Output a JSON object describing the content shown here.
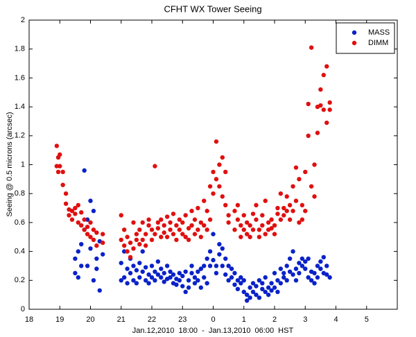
{
  "chart_data": {
    "type": "scatter",
    "title": "CFHT WX Tower Seeing",
    "x_label": "Jan.12,2010  18:00  -  Jan.13,2010  06:00  HST",
    "y_label": "Seeing @ 0.5 microns (arcsec)",
    "xlim": [
      18,
      30
    ],
    "xticks": [
      18,
      19,
      20,
      21,
      22,
      23,
      {
        "value": 24,
        "label": "0"
      },
      {
        "value": 25,
        "label": "1"
      },
      {
        "value": 26,
        "label": "2"
      },
      {
        "value": 27,
        "label": "3"
      },
      {
        "value": 28,
        "label": "4"
      },
      {
        "value": 29,
        "label": "5"
      }
    ],
    "ylim": [
      0,
      2
    ],
    "yticks": [
      0,
      0.2,
      0.4,
      0.6,
      0.8,
      1,
      1.2,
      1.4,
      1.6,
      1.8,
      2
    ],
    "grid": false,
    "legend": "top-right",
    "series": [
      {
        "name": "MASS",
        "color": "#0a22c8",
        "x": [
          19.5,
          19.5,
          19.6,
          19.6,
          19.7,
          19.7,
          19.8,
          19.8,
          19.9,
          19.9,
          20.0,
          20.0,
          20.1,
          20.1,
          20.2,
          20.2,
          20.3,
          20.3,
          20.4,
          21.0,
          21.0,
          21.1,
          21.1,
          21.2,
          21.2,
          21.3,
          21.3,
          21.4,
          21.4,
          21.5,
          21.5,
          21.6,
          21.6,
          21.7,
          21.7,
          21.8,
          21.8,
          21.9,
          21.9,
          22.0,
          22.0,
          22.1,
          22.1,
          22.2,
          22.2,
          22.3,
          22.3,
          22.4,
          22.4,
          22.5,
          22.5,
          22.6,
          22.6,
          22.7,
          22.7,
          22.8,
          22.8,
          22.9,
          22.9,
          23.0,
          23.0,
          23.1,
          23.1,
          23.2,
          23.2,
          23.3,
          23.3,
          23.4,
          23.4,
          23.5,
          23.5,
          23.6,
          23.6,
          23.7,
          23.7,
          23.8,
          23.8,
          23.9,
          23.9,
          24.0,
          24.0,
          24.1,
          24.1,
          24.2,
          24.2,
          24.3,
          24.3,
          24.4,
          24.4,
          24.5,
          24.5,
          24.6,
          24.6,
          24.7,
          24.7,
          24.8,
          24.8,
          24.9,
          24.9,
          25.0,
          25.0,
          25.1,
          25.1,
          25.2,
          25.2,
          25.3,
          25.3,
          25.4,
          25.4,
          25.5,
          25.5,
          25.6,
          25.6,
          25.7,
          25.7,
          25.8,
          25.8,
          25.9,
          25.9,
          26.0,
          26.0,
          26.1,
          26.1,
          26.2,
          26.2,
          26.3,
          26.3,
          26.4,
          26.4,
          26.5,
          26.5,
          26.6,
          26.6,
          26.7,
          26.7,
          26.8,
          26.8,
          26.9,
          26.9,
          27.0,
          27.0,
          27.1,
          27.1,
          27.2,
          27.2,
          27.3,
          27.3,
          27.4,
          27.4,
          27.5,
          27.5,
          27.6,
          27.6,
          27.7,
          27.7,
          27.8
        ],
        "values": [
          0.35,
          0.25,
          0.4,
          0.22,
          0.3,
          0.45,
          0.96,
          0.55,
          0.62,
          0.3,
          0.75,
          0.42,
          0.68,
          0.2,
          0.35,
          0.28,
          0.13,
          0.47,
          0.38,
          0.2,
          0.32,
          0.22,
          0.4,
          0.18,
          0.28,
          0.25,
          0.35,
          0.2,
          0.3,
          0.27,
          0.18,
          0.32,
          0.22,
          0.26,
          0.4,
          0.2,
          0.29,
          0.24,
          0.18,
          0.3,
          0.22,
          0.26,
          0.2,
          0.33,
          0.24,
          0.22,
          0.28,
          0.25,
          0.19,
          0.3,
          0.21,
          0.22,
          0.26,
          0.18,
          0.24,
          0.21,
          0.17,
          0.25,
          0.2,
          0.16,
          0.23,
          0.12,
          0.26,
          0.2,
          0.15,
          0.25,
          0.3,
          0.18,
          0.22,
          0.26,
          0.2,
          0.15,
          0.28,
          0.22,
          0.3,
          0.35,
          0.18,
          0.4,
          0.3,
          0.52,
          0.34,
          0.3,
          0.25,
          0.45,
          0.38,
          0.42,
          0.3,
          0.35,
          0.24,
          0.3,
          0.2,
          0.22,
          0.28,
          0.17,
          0.25,
          0.2,
          0.14,
          0.22,
          0.18,
          0.12,
          0.2,
          0.06,
          0.1,
          0.15,
          0.08,
          0.12,
          0.18,
          0.16,
          0.1,
          0.2,
          0.08,
          0.14,
          0.18,
          0.12,
          0.22,
          0.15,
          0.1,
          0.18,
          0.13,
          0.25,
          0.15,
          0.2,
          0.12,
          0.28,
          0.18,
          0.22,
          0.25,
          0.3,
          0.2,
          0.35,
          0.26,
          0.24,
          0.4,
          0.2,
          0.28,
          0.32,
          0.25,
          0.35,
          0.3,
          0.33,
          0.28,
          0.22,
          0.35,
          0.2,
          0.26,
          0.25,
          0.18,
          0.3,
          0.22,
          0.33,
          0.28,
          0.36,
          0.25,
          0.3,
          0.24,
          0.22
        ]
      },
      {
        "name": "DIMM",
        "color": "#e01010",
        "x": [
          18.9,
          18.9,
          18.95,
          18.95,
          19.0,
          19.0,
          19.1,
          19.1,
          19.2,
          19.2,
          19.3,
          19.3,
          19.4,
          19.4,
          19.5,
          19.5,
          19.6,
          19.6,
          19.7,
          19.7,
          19.8,
          19.8,
          19.9,
          19.9,
          20.0,
          20.0,
          20.1,
          20.1,
          20.2,
          20.2,
          20.4,
          20.4,
          21.0,
          21.0,
          21.1,
          21.1,
          21.2,
          21.2,
          21.3,
          21.3,
          21.4,
          21.4,
          21.5,
          21.5,
          21.6,
          21.6,
          21.7,
          21.7,
          21.8,
          21.8,
          21.9,
          21.9,
          22.0,
          22.0,
          22.1,
          22.1,
          22.2,
          22.2,
          22.3,
          22.3,
          22.4,
          22.4,
          22.5,
          22.5,
          22.6,
          22.6,
          22.7,
          22.7,
          22.8,
          22.8,
          22.9,
          22.9,
          23.0,
          23.0,
          23.1,
          23.1,
          23.2,
          23.2,
          23.3,
          23.3,
          23.4,
          23.4,
          23.5,
          23.5,
          23.6,
          23.6,
          23.7,
          23.7,
          23.8,
          23.8,
          23.9,
          23.9,
          24.0,
          24.0,
          24.1,
          24.1,
          24.2,
          24.2,
          24.3,
          24.3,
          24.4,
          24.4,
          24.5,
          24.5,
          24.7,
          24.7,
          24.8,
          24.8,
          24.9,
          24.9,
          25.0,
          25.0,
          25.1,
          25.1,
          25.2,
          25.2,
          25.3,
          25.3,
          25.4,
          25.4,
          25.5,
          25.5,
          25.6,
          25.6,
          25.7,
          25.7,
          25.8,
          25.8,
          25.9,
          25.9,
          26.0,
          26.0,
          26.1,
          26.1,
          26.2,
          26.2,
          26.3,
          26.3,
          26.4,
          26.4,
          26.5,
          26.5,
          26.6,
          26.6,
          26.7,
          26.7,
          26.8,
          26.8,
          26.9,
          26.9,
          27.0,
          27.0,
          27.1,
          27.1,
          27.2,
          27.2,
          27.3,
          27.3,
          27.4,
          27.4,
          27.5,
          27.5,
          27.6,
          27.6,
          27.7,
          27.7,
          27.8,
          27.8
        ],
        "values": [
          1.13,
          0.99,
          1.05,
          0.95,
          1.07,
          0.99,
          0.95,
          0.86,
          0.8,
          0.73,
          0.65,
          0.69,
          0.68,
          0.62,
          0.7,
          0.66,
          0.6,
          0.72,
          0.58,
          0.67,
          0.55,
          0.62,
          0.52,
          0.57,
          0.6,
          0.5,
          0.55,
          0.48,
          0.53,
          0.44,
          0.52,
          0.46,
          0.65,
          0.48,
          0.44,
          0.55,
          0.4,
          0.5,
          0.46,
          0.36,
          0.6,
          0.42,
          0.52,
          0.48,
          0.45,
          0.55,
          0.6,
          0.48,
          0.52,
          0.44,
          0.58,
          0.62,
          0.48,
          0.55,
          0.99,
          0.52,
          0.56,
          0.6,
          0.5,
          0.62,
          0.58,
          0.53,
          0.64,
          0.5,
          0.55,
          0.6,
          0.52,
          0.66,
          0.48,
          0.58,
          0.55,
          0.62,
          0.52,
          0.6,
          0.5,
          0.65,
          0.56,
          0.48,
          0.58,
          0.68,
          0.52,
          0.62,
          0.55,
          0.7,
          0.6,
          0.5,
          0.75,
          0.58,
          0.68,
          0.55,
          0.85,
          0.62,
          0.8,
          0.95,
          0.9,
          1.16,
          0.85,
          1.0,
          0.78,
          1.05,
          0.72,
          0.95,
          0.65,
          0.6,
          0.55,
          0.68,
          0.62,
          0.72,
          0.58,
          0.5,
          0.55,
          0.65,
          0.52,
          0.6,
          0.5,
          0.58,
          0.66,
          0.55,
          0.62,
          0.72,
          0.55,
          0.5,
          0.58,
          0.65,
          0.52,
          0.75,
          0.6,
          0.55,
          0.56,
          0.62,
          0.58,
          0.52,
          0.66,
          0.7,
          0.8,
          0.62,
          0.7,
          0.65,
          0.78,
          0.68,
          0.72,
          0.62,
          0.68,
          0.85,
          0.98,
          0.75,
          0.9,
          0.6,
          0.72,
          0.62,
          0.95,
          0.68,
          1.2,
          1.42,
          1.81,
          0.85,
          1.0,
          0.78,
          1.4,
          1.22,
          1.52,
          1.41,
          1.62,
          1.38,
          1.68,
          1.29,
          1.43,
          1.38
        ]
      }
    ]
  }
}
